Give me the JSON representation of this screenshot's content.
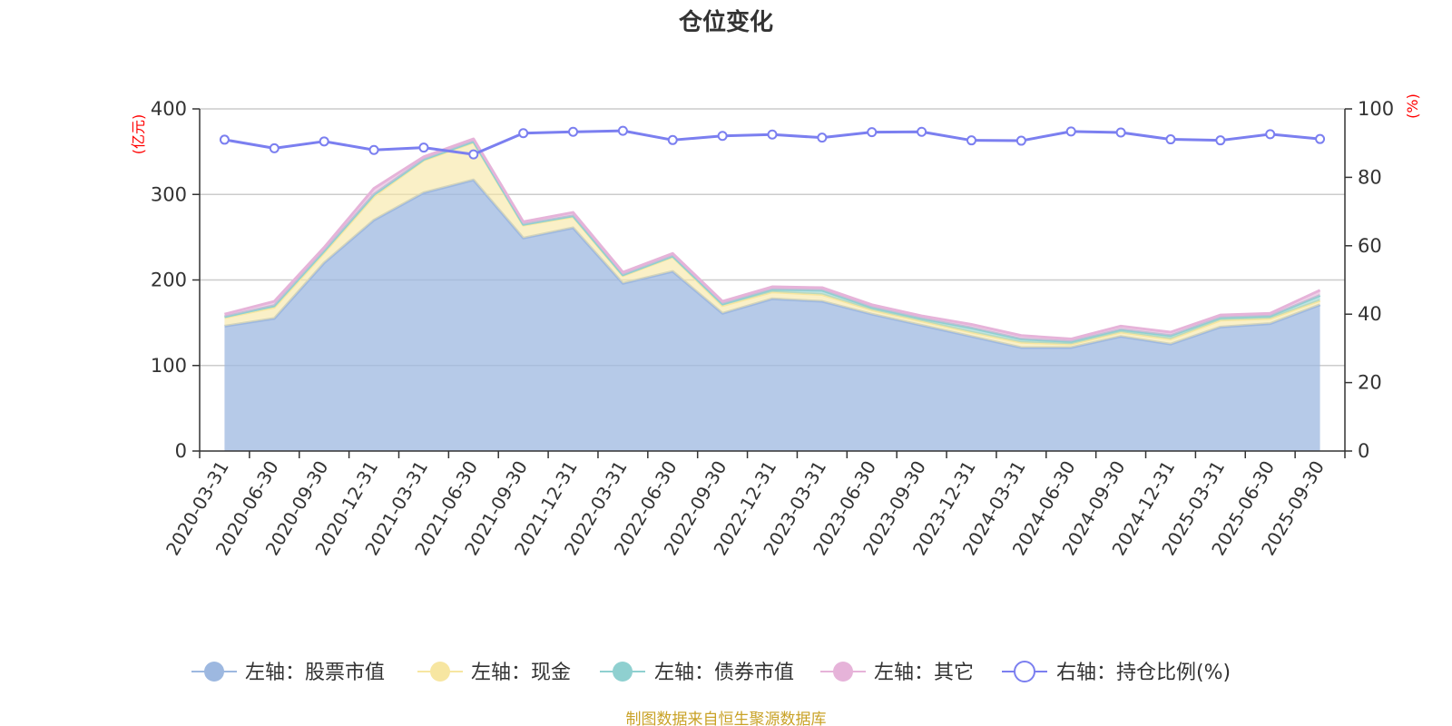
{
  "chart_data": {
    "type": "area",
    "title": "仓位变化",
    "left_unit": "(亿元)",
    "right_unit": "(%)",
    "categories": [
      "2020-03-31",
      "2020-06-30",
      "2020-09-30",
      "2020-12-31",
      "2021-03-31",
      "2021-06-30",
      "2021-09-30",
      "2021-12-31",
      "2022-03-31",
      "2022-06-30",
      "2022-09-30",
      "2022-12-31",
      "2023-03-31",
      "2023-06-30",
      "2023-09-30",
      "2023-12-31",
      "2024-03-31",
      "2024-06-30",
      "2024-09-30",
      "2024-12-31",
      "2025-03-31",
      "2025-06-30",
      "2025-09-30"
    ],
    "left_axis": {
      "min": 0,
      "max": 400,
      "ticks": [
        0,
        100,
        200,
        300,
        400
      ]
    },
    "right_axis": {
      "min": 0,
      "max": 100,
      "ticks": [
        0,
        20,
        40,
        60,
        80,
        100
      ]
    },
    "series": [
      {
        "name": "左轴：股票市值",
        "axis": "left",
        "stack": true,
        "color": "#9db8e0",
        "values": [
          146,
          155,
          220,
          270,
          302,
          317,
          249,
          261,
          196,
          210,
          161,
          178,
          175,
          160,
          147,
          134,
          121,
          121,
          134,
          125,
          145,
          149,
          171
        ]
      },
      {
        "name": "左轴：现金",
        "axis": "left",
        "stack": true,
        "color": "#f7e6a1",
        "values": [
          10,
          13,
          12,
          28,
          38,
          44,
          15,
          13,
          9,
          17,
          9,
          8,
          8,
          5,
          5,
          5,
          6,
          4,
          5,
          6,
          8,
          6,
          5
        ]
      },
      {
        "name": "左轴：债券市值",
        "axis": "left",
        "stack": true,
        "color": "#8fd0d0",
        "values": [
          1,
          2,
          2,
          2,
          1,
          1,
          1,
          1,
          1,
          1,
          2,
          3,
          5,
          3,
          3,
          5,
          4,
          3,
          3,
          4,
          3,
          3,
          6
        ]
      },
      {
        "name": "左轴：其它",
        "axis": "left",
        "stack": true,
        "color": "#e6b3d9",
        "values": [
          3,
          5,
          4,
          7,
          3,
          3,
          3,
          4,
          3,
          3,
          3,
          3,
          3,
          3,
          3,
          4,
          4,
          3,
          4,
          4,
          3,
          3,
          6
        ]
      },
      {
        "name": "右轴：持仓比例(%)",
        "axis": "right",
        "stack": false,
        "color": "#7b7ff0",
        "values": [
          91.0,
          88.5,
          90.5,
          88.0,
          88.7,
          86.7,
          92.9,
          93.3,
          93.6,
          90.9,
          92.1,
          92.5,
          91.6,
          93.2,
          93.3,
          90.8,
          90.7,
          93.4,
          93.1,
          91.1,
          90.8,
          92.6,
          91.2
        ]
      }
    ]
  },
  "source": "制图数据来自恒生聚源数据库"
}
